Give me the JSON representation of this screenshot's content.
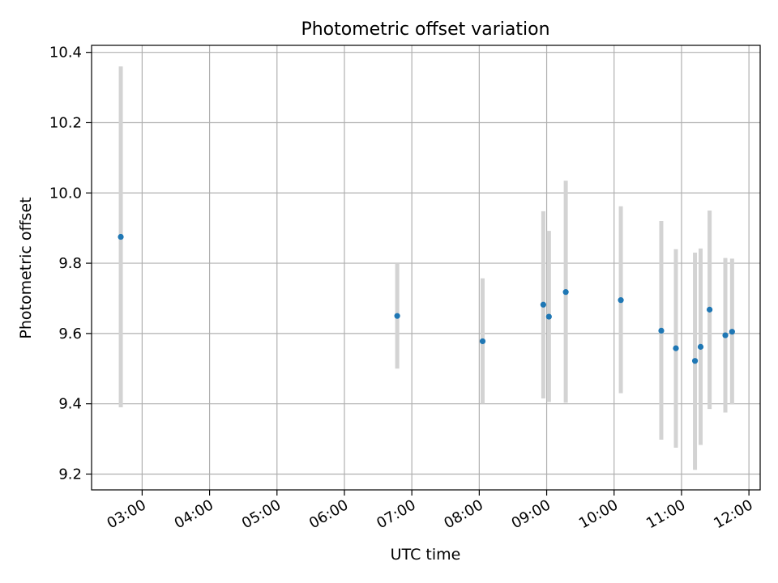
{
  "chart_data": {
    "type": "scatter",
    "title": "Photometric offset variation",
    "xlabel": "UTC time",
    "ylabel": "Photometric offset",
    "xlim": [
      "02:15",
      "12:10"
    ],
    "ylim": [
      9.155,
      10.42
    ],
    "grid": true,
    "x_ticks": [
      "03:00",
      "04:00",
      "05:00",
      "06:00",
      "07:00",
      "08:00",
      "09:00",
      "10:00",
      "11:00",
      "12:00"
    ],
    "y_ticks": [
      9.2,
      9.4,
      9.6,
      9.8,
      10.0,
      10.2,
      10.4
    ],
    "y_tick_labels": [
      "9.2",
      "9.4",
      "9.6",
      "9.8",
      "10.0",
      "10.2",
      "10.4"
    ],
    "point_color": "#1f77b4",
    "errorbar_color": "#d3d3d3",
    "points": [
      {
        "time": "02:41",
        "value": 9.875,
        "low": 9.39,
        "high": 10.36
      },
      {
        "time": "06:47",
        "value": 9.65,
        "low": 9.5,
        "high": 9.8
      },
      {
        "time": "08:03",
        "value": 9.578,
        "low": 9.4,
        "high": 9.757
      },
      {
        "time": "08:57",
        "value": 9.682,
        "low": 9.415,
        "high": 9.948
      },
      {
        "time": "09:02",
        "value": 9.648,
        "low": 9.405,
        "high": 9.892
      },
      {
        "time": "09:17",
        "value": 9.718,
        "low": 9.403,
        "high": 10.035
      },
      {
        "time": "10:06",
        "value": 9.695,
        "low": 9.43,
        "high": 9.962
      },
      {
        "time": "10:42",
        "value": 9.608,
        "low": 9.298,
        "high": 9.92
      },
      {
        "time": "10:55",
        "value": 9.558,
        "low": 9.275,
        "high": 9.84
      },
      {
        "time": "11:12",
        "value": 9.522,
        "low": 9.212,
        "high": 9.83
      },
      {
        "time": "11:17",
        "value": 9.562,
        "low": 9.283,
        "high": 9.842
      },
      {
        "time": "11:25",
        "value": 9.668,
        "low": 9.385,
        "high": 9.95
      },
      {
        "time": "11:39",
        "value": 9.595,
        "low": 9.375,
        "high": 9.815
      },
      {
        "time": "11:45",
        "value": 9.605,
        "low": 9.398,
        "high": 9.813
      }
    ]
  }
}
